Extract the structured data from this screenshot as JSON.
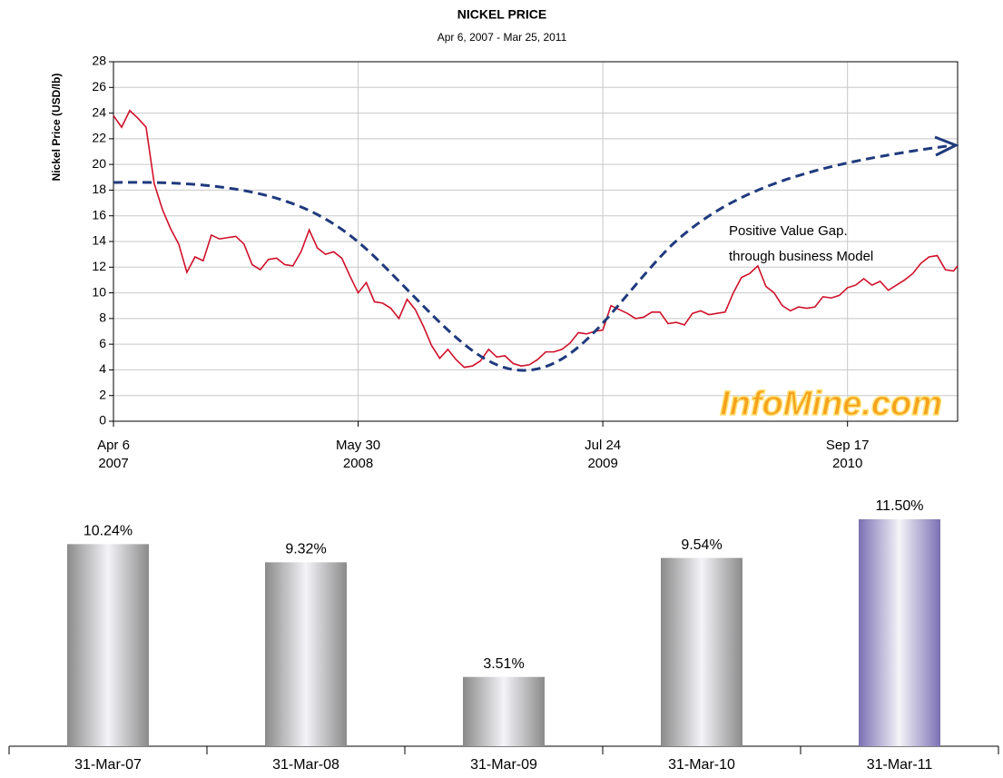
{
  "chart_data": [
    {
      "type": "line",
      "title": "NICKEL PRICE",
      "subtitle": "Apr 6, 2007 - Mar 25, 2011",
      "y_label": "Nickel Price (USD/lb)",
      "annotations": [
        "Positive Value Gap.",
        "through business Model"
      ],
      "watermark": "InfoMine.com",
      "color": "#d0102a",
      "grid": true,
      "xlim": [
        "2007-04-06",
        "2011-03-25"
      ],
      "xticks": [
        {
          "value": "2007-04-06",
          "label": [
            "Apr 6",
            "2007"
          ]
        },
        {
          "value": "2008-05-30",
          "label": [
            "May 30",
            "2008"
          ]
        },
        {
          "value": "2009-07-24",
          "label": [
            "Jul 24",
            "2009"
          ]
        },
        {
          "value": "2010-09-17",
          "label": [
            "Sep 17",
            "2010"
          ]
        }
      ],
      "ylim": [
        0,
        28
      ],
      "yticks": [
        0,
        2,
        4,
        6,
        8,
        10,
        12,
        14,
        16,
        18,
        20,
        22,
        24,
        26,
        28
      ],
      "x": [
        "2007-04-06",
        "2007-04-20",
        "2007-05-04",
        "2007-05-18",
        "2007-06-01",
        "2007-06-15",
        "2007-06-29",
        "2007-07-13",
        "2007-07-27",
        "2007-08-10",
        "2007-08-24",
        "2007-09-07",
        "2007-09-21",
        "2007-10-05",
        "2007-10-19",
        "2007-11-02",
        "2007-11-16",
        "2007-11-30",
        "2007-12-14",
        "2007-12-28",
        "2008-01-11",
        "2008-01-25",
        "2008-02-08",
        "2008-02-22",
        "2008-03-07",
        "2008-03-21",
        "2008-04-04",
        "2008-04-18",
        "2008-05-02",
        "2008-05-16",
        "2008-05-30",
        "2008-06-13",
        "2008-06-27",
        "2008-07-11",
        "2008-07-25",
        "2008-08-08",
        "2008-08-22",
        "2008-09-05",
        "2008-09-19",
        "2008-10-03",
        "2008-10-17",
        "2008-10-31",
        "2008-11-14",
        "2008-11-28",
        "2008-12-12",
        "2008-12-26",
        "2009-01-09",
        "2009-01-23",
        "2009-02-06",
        "2009-02-20",
        "2009-03-06",
        "2009-03-20",
        "2009-04-03",
        "2009-04-17",
        "2009-05-01",
        "2009-05-15",
        "2009-05-29",
        "2009-06-12",
        "2009-06-26",
        "2009-07-10",
        "2009-07-24",
        "2009-08-07",
        "2009-08-21",
        "2009-09-04",
        "2009-09-18",
        "2009-10-02",
        "2009-10-16",
        "2009-10-30",
        "2009-11-13",
        "2009-11-27",
        "2009-12-11",
        "2009-12-25",
        "2010-01-08",
        "2010-01-22",
        "2010-02-05",
        "2010-02-19",
        "2010-03-05",
        "2010-03-19",
        "2010-04-02",
        "2010-04-16",
        "2010-04-30",
        "2010-05-14",
        "2010-05-28",
        "2010-06-11",
        "2010-06-25",
        "2010-07-09",
        "2010-07-23",
        "2010-08-06",
        "2010-08-20",
        "2010-09-03",
        "2010-09-17",
        "2010-10-01",
        "2010-10-15",
        "2010-10-29",
        "2010-11-12",
        "2010-11-26",
        "2010-12-10",
        "2010-12-24",
        "2011-01-07",
        "2011-01-21",
        "2011-02-04",
        "2011-02-18",
        "2011-03-04",
        "2011-03-18",
        "2011-03-25"
      ],
      "values": [
        23.8,
        22.9,
        24.2,
        23.6,
        22.9,
        18.5,
        16.5,
        15.0,
        13.8,
        11.6,
        12.8,
        12.5,
        14.5,
        14.2,
        14.3,
        14.4,
        13.8,
        12.2,
        11.8,
        12.6,
        12.7,
        12.2,
        12.1,
        13.2,
        14.9,
        13.5,
        13.0,
        13.2,
        12.7,
        11.3,
        10.0,
        10.8,
        9.3,
        9.2,
        8.8,
        8.0,
        9.5,
        8.7,
        7.4,
        5.9,
        4.9,
        5.6,
        4.8,
        4.2,
        4.3,
        4.7,
        5.6,
        5.0,
        5.1,
        4.5,
        4.3,
        4.4,
        4.8,
        5.4,
        5.4,
        5.6,
        6.1,
        6.9,
        6.8,
        7.0,
        7.1,
        9.0,
        8.7,
        8.4,
        8.0,
        8.1,
        8.5,
        8.5,
        7.6,
        7.7,
        7.5,
        8.4,
        8.6,
        8.3,
        8.4,
        8.5,
        10.0,
        11.2,
        11.5,
        12.1,
        10.5,
        10.0,
        9.0,
        8.6,
        8.9,
        8.8,
        8.9,
        9.7,
        9.6,
        9.8,
        10.4,
        10.6,
        11.1,
        10.6,
        10.9,
        10.2,
        10.6,
        11.0,
        11.5,
        12.3,
        12.8,
        12.9,
        11.8,
        11.7,
        12.1
      ]
    },
    {
      "type": "bar",
      "categories": [
        "31-Mar-07",
        "31-Mar-08",
        "31-Mar-09",
        "31-Mar-10",
        "31-Mar-11"
      ],
      "values": [
        10.24,
        9.32,
        3.51,
        9.54,
        11.5
      ],
      "value_labels": [
        "10.24%",
        "9.32%",
        "3.51%",
        "9.54%",
        "11.50%"
      ],
      "colors": [
        "#8a8a8a",
        "#8a8a8a",
        "#8a8a8a",
        "#8a8a8a",
        "#7b70b3"
      ]
    }
  ]
}
